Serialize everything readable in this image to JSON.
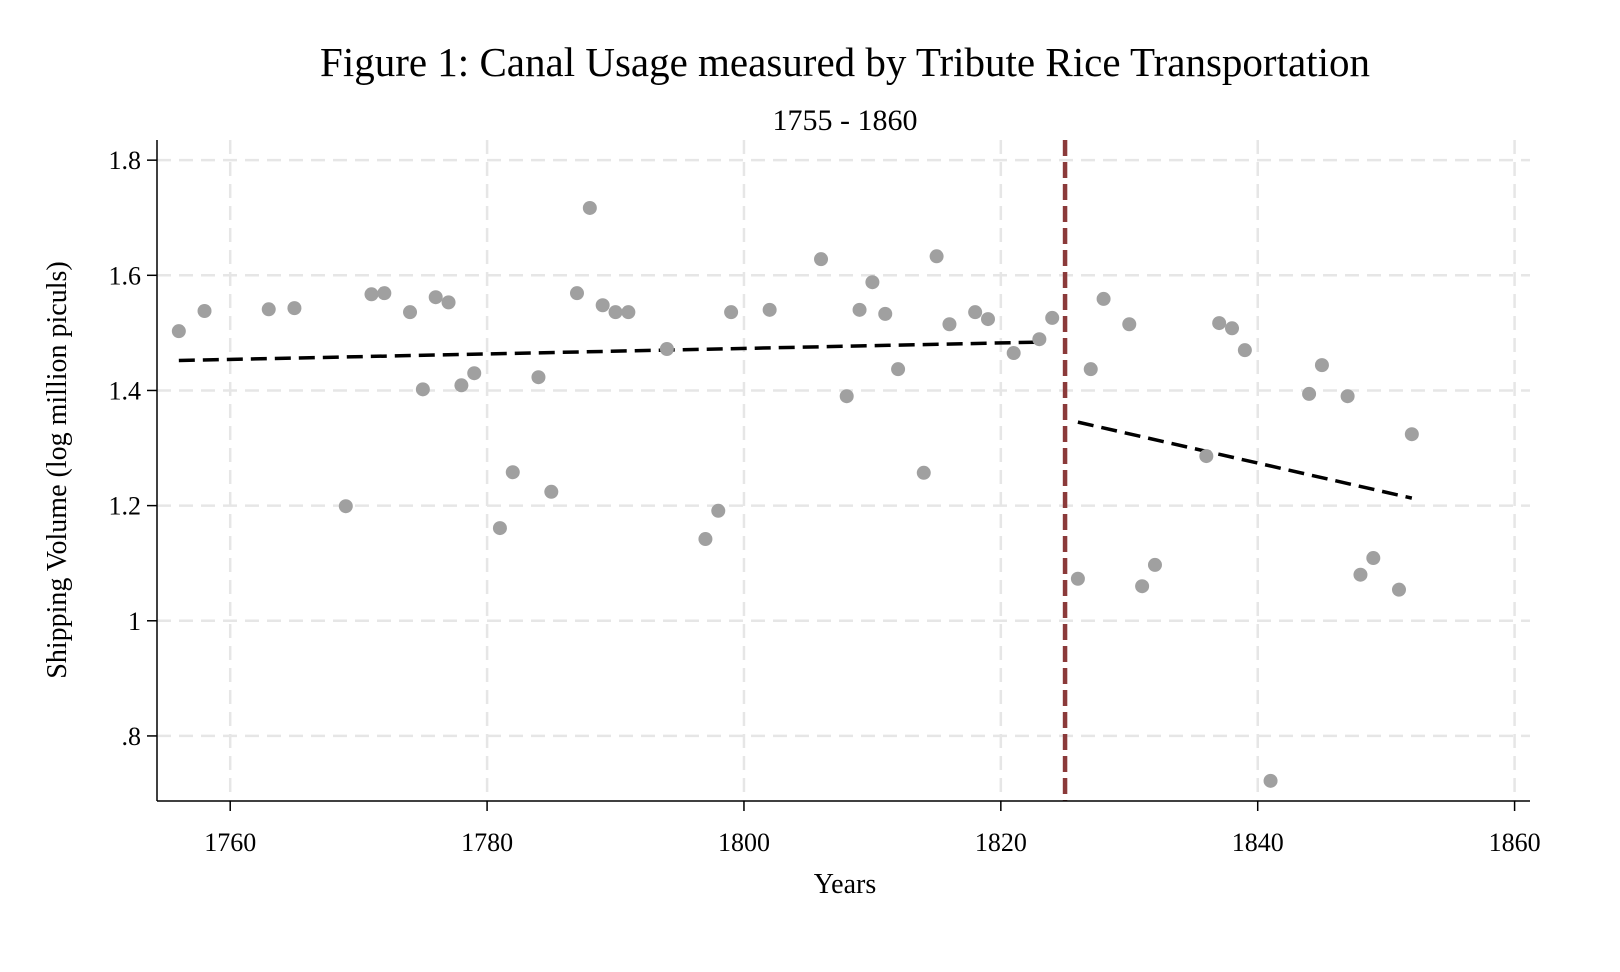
{
  "chart_data": {
    "type": "scatter",
    "title": "Figure 1: Canal Usage measured by Tribute Rice Transportation",
    "subtitle": "1755 - 1860",
    "xlabel": "Years",
    "ylabel": "Shipping Volume (log million piculs)",
    "xlim": [
      1754.3,
      1861.2
    ],
    "ylim": [
      0.687,
      1.835
    ],
    "xticks": [
      1760,
      1780,
      1800,
      1820,
      1840,
      1860
    ],
    "xtick_labels": [
      "1760",
      "1780",
      "1800",
      "1820",
      "1840",
      "1860"
    ],
    "yticks": [
      0.8,
      1.0,
      1.2,
      1.4,
      1.6,
      1.8
    ],
    "ytick_labels": [
      ".8",
      "1",
      "1.2",
      "1.4",
      "1.6",
      "1.8"
    ],
    "grid": true,
    "colors": {
      "points": "#a0a0a0",
      "fit": "#000000",
      "break": "#8b3a3a",
      "grid": "#e6e6e6"
    },
    "points": {
      "x": [
        1756,
        1758,
        1763,
        1765,
        1769,
        1771,
        1772,
        1774,
        1775,
        1776,
        1777,
        1778,
        1779,
        1781,
        1782,
        1784,
        1785,
        1787,
        1788,
        1789,
        1790,
        1791,
        1794,
        1797,
        1798,
        1799,
        1802,
        1806,
        1808,
        1809,
        1810,
        1811,
        1812,
        1814,
        1815,
        1816,
        1818,
        1819,
        1821,
        1823,
        1824,
        1826,
        1827,
        1828,
        1830,
        1831,
        1832,
        1836,
        1837,
        1838,
        1839,
        1841,
        1844,
        1845,
        1847,
        1848,
        1849,
        1851,
        1852
      ],
      "y": [
        1.503,
        1.538,
        1.541,
        1.543,
        1.199,
        1.567,
        1.569,
        1.536,
        1.402,
        1.562,
        1.553,
        1.409,
        1.43,
        1.161,
        1.258,
        1.423,
        1.224,
        1.569,
        1.717,
        1.548,
        1.536,
        1.536,
        1.472,
        1.142,
        1.191,
        1.536,
        1.54,
        1.628,
        1.39,
        1.54,
        1.588,
        1.533,
        1.437,
        1.257,
        1.633,
        1.515,
        1.536,
        1.524,
        1.465,
        1.489,
        1.526,
        1.073,
        1.437,
        1.559,
        1.515,
        1.06,
        1.097,
        1.286,
        1.517,
        1.508,
        1.47,
        0.722,
        1.394,
        1.444,
        1.39,
        1.08,
        1.109,
        1.054,
        1.324
      ]
    },
    "fit_lines": [
      {
        "name": "pre-1825 fit",
        "x": [
          1756,
          1823
        ],
        "y": [
          1.452,
          1.484
        ]
      },
      {
        "name": "post-1825 fit",
        "x": [
          1826,
          1852
        ],
        "y": [
          1.345,
          1.213
        ]
      }
    ],
    "vertical_line": {
      "x": 1825
    }
  }
}
